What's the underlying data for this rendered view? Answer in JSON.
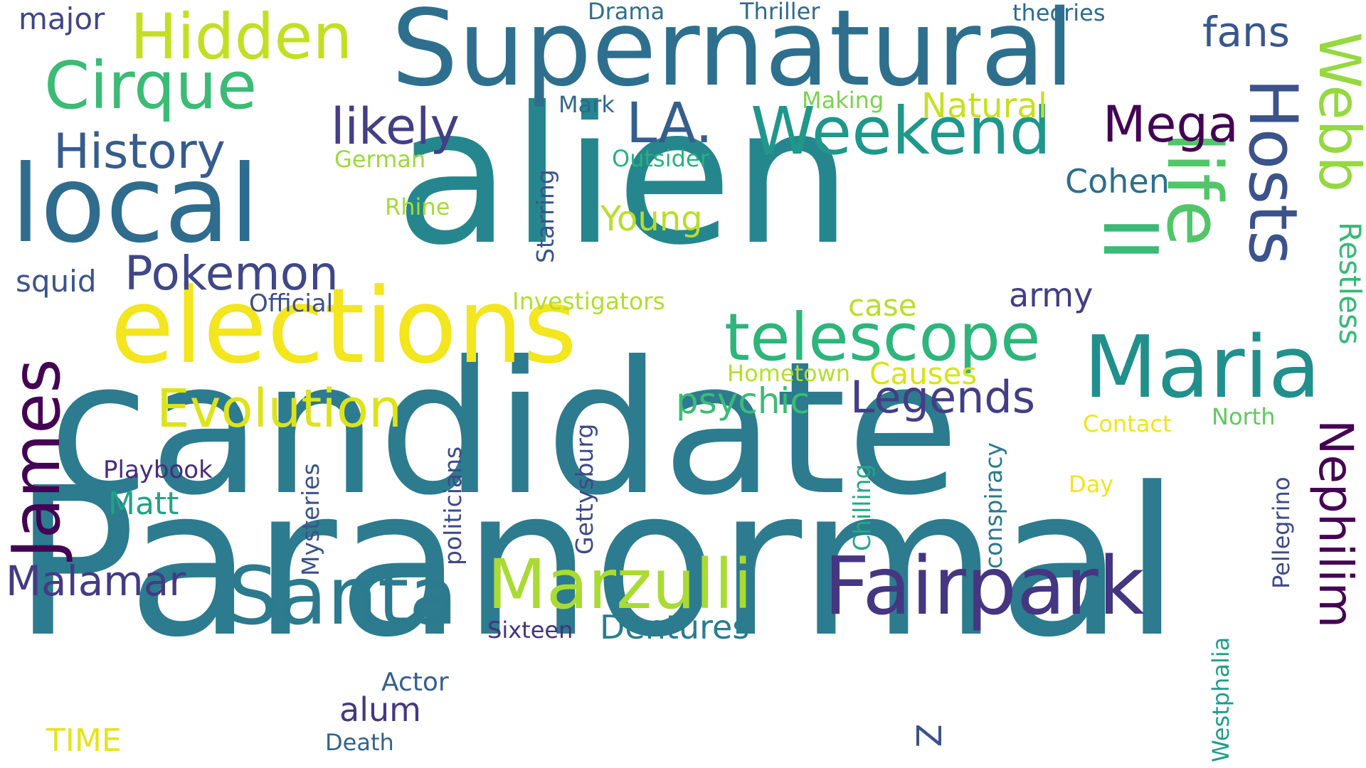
{
  "words": [
    {
      "text": "Paranormal",
      "color": "#2c7b8e"
    },
    {
      "text": "candidate",
      "color": "#2c7b8e"
    },
    {
      "text": "alien",
      "color": "#25878d"
    },
    {
      "text": "Supernatural",
      "color": "#2e6f8e"
    },
    {
      "text": "elections",
      "color": "#f3e51e"
    },
    {
      "text": "local",
      "color": "#2f6c8e"
    },
    {
      "text": "Maria",
      "color": "#218f8c"
    },
    {
      "text": "Fairpark",
      "color": "#453681"
    },
    {
      "text": "Santa",
      "color": "#2c7a8e"
    },
    {
      "text": "Marzulli",
      "color": "#a9db33"
    },
    {
      "text": "telescope",
      "color": "#2db57b"
    },
    {
      "text": "Weekend",
      "color": "#1f978b"
    },
    {
      "text": "Cirque",
      "color": "#3bbb75"
    },
    {
      "text": "Hidden",
      "color": "#c2df23"
    },
    {
      "text": "Hosts",
      "color": "#3b528b"
    },
    {
      "text": "life",
      "color": "#52c569"
    },
    {
      "text": "Webb",
      "color": "#95d840"
    },
    {
      "text": "II",
      "color": "#3aba76"
    },
    {
      "text": "James",
      "color": "#440154"
    },
    {
      "text": "Evolution",
      "color": "#dde318"
    },
    {
      "text": "LA.",
      "color": "#355e8d"
    },
    {
      "text": "likely",
      "color": "#433e85"
    },
    {
      "text": "History",
      "color": "#365c8d"
    },
    {
      "text": "Pokemon",
      "color": "#3f4788"
    },
    {
      "text": "Nephilim",
      "color": "#440154"
    },
    {
      "text": "Mega",
      "color": "#440154"
    },
    {
      "text": "Legends",
      "color": "#433e85"
    },
    {
      "text": "Malamar",
      "color": "#443b84"
    },
    {
      "text": "psychic",
      "color": "#3cbc75"
    },
    {
      "text": "Dentures",
      "color": "#287d8e"
    },
    {
      "text": "Natural",
      "color": "#c8e020"
    },
    {
      "text": "Young",
      "color": "#b8de29"
    },
    {
      "text": "Cohen",
      "color": "#2e6e8e"
    },
    {
      "text": "Restless",
      "color": "#37b878"
    },
    {
      "text": "army",
      "color": "#433e85"
    },
    {
      "text": "fans",
      "color": "#39568c"
    },
    {
      "text": "Matt",
      "color": "#20a386"
    },
    {
      "text": "alum",
      "color": "#453781"
    },
    {
      "text": "TIME",
      "color": "#e5e419"
    },
    {
      "text": "case",
      "color": "#bade28"
    },
    {
      "text": "Causes",
      "color": "#d8e219"
    },
    {
      "text": "squid",
      "color": "#3a548c"
    },
    {
      "text": "major",
      "color": "#404588"
    },
    {
      "text": "Actor",
      "color": "#355f8d"
    },
    {
      "text": "Playbook",
      "color": "#472c7a"
    },
    {
      "text": "Official",
      "color": "#3d4e8a"
    },
    {
      "text": "Investigators",
      "color": "#b2dd2d"
    },
    {
      "text": "Hometown",
      "color": "#b5de2b"
    },
    {
      "text": "Mysteries",
      "color": "#3b528b"
    },
    {
      "text": "politicians",
      "color": "#3e4989"
    },
    {
      "text": "Gettysburg",
      "color": "#3f4889"
    },
    {
      "text": "Chilling",
      "color": "#22a884"
    },
    {
      "text": "conspiracy",
      "color": "#2a788e"
    },
    {
      "text": "Starring",
      "color": "#3b528b"
    },
    {
      "text": "Outsider",
      "color": "#2ab07f"
    },
    {
      "text": "German",
      "color": "#9cd93b"
    },
    {
      "text": "Rhine",
      "color": "#a5db36"
    },
    {
      "text": "Making",
      "color": "#7ad151"
    },
    {
      "text": "Mark",
      "color": "#31688e"
    },
    {
      "text": "Drama",
      "color": "#2e6e8e"
    },
    {
      "text": "Thriller",
      "color": "#306a8e"
    },
    {
      "text": "theories",
      "color": "#2f6b8e"
    },
    {
      "text": "Contact",
      "color": "#efe51c"
    },
    {
      "text": "North",
      "color": "#5ec962"
    },
    {
      "text": "Day",
      "color": "#f1e51d"
    },
    {
      "text": "Pellegrino",
      "color": "#3e4a89"
    },
    {
      "text": "Westphalia",
      "color": "#1f9e89"
    },
    {
      "text": "Sixteen",
      "color": "#46327e"
    },
    {
      "text": "Death",
      "color": "#33638d"
    },
    {
      "text": "Z",
      "color": "#3b528b"
    }
  ]
}
